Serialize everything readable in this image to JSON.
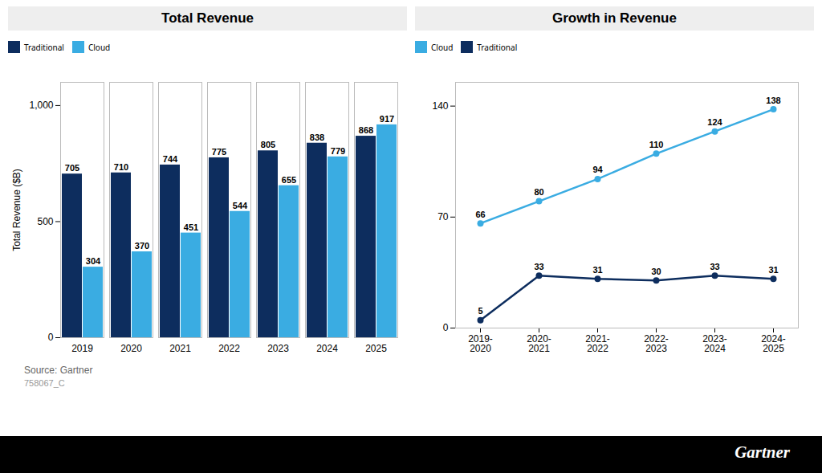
{
  "chart_data": [
    {
      "type": "bar",
      "title": "Total Revenue",
      "categories": [
        "2019",
        "2020",
        "2021",
        "2022",
        "2023",
        "2024",
        "2025"
      ],
      "series": [
        {
          "name": "Traditional",
          "color": "#0d2d5e",
          "values": [
            705,
            710,
            744,
            775,
            805,
            838,
            868
          ]
        },
        {
          "name": "Cloud",
          "color": "#3aace2",
          "values": [
            304,
            370,
            451,
            544,
            655,
            779,
            917
          ]
        }
      ],
      "ylabel": "Total Revenue ($B)",
      "ylim": [
        0,
        1100
      ],
      "yticks": [
        0,
        500,
        {
          "value": 1000,
          "label": "1,000"
        }
      ],
      "grid": false,
      "legend": "upper left",
      "data_labels": true,
      "annotations": [
        "Source: Gartner",
        "758067_C",
        "Gartner"
      ]
    },
    {
      "type": "line",
      "title": "Growth in Revenue",
      "categories": [
        "2019-\n2020",
        "2020-\n2021",
        "2021-\n2022",
        "2022-\n2023",
        "2023-\n2024",
        "2024-\n2025"
      ],
      "series": [
        {
          "name": "Cloud",
          "color": "#3aace2",
          "values": [
            66,
            80,
            94,
            110,
            124,
            138
          ]
        },
        {
          "name": "Traditional",
          "color": "#0d2d5e",
          "values": [
            5,
            33,
            31,
            30,
            33,
            31
          ]
        }
      ],
      "ylim": [
        0,
        155
      ],
      "yticks": [
        0,
        70,
        140
      ],
      "grid": false,
      "legend": "upper left",
      "marker": "circle",
      "data_labels": true
    }
  ]
}
